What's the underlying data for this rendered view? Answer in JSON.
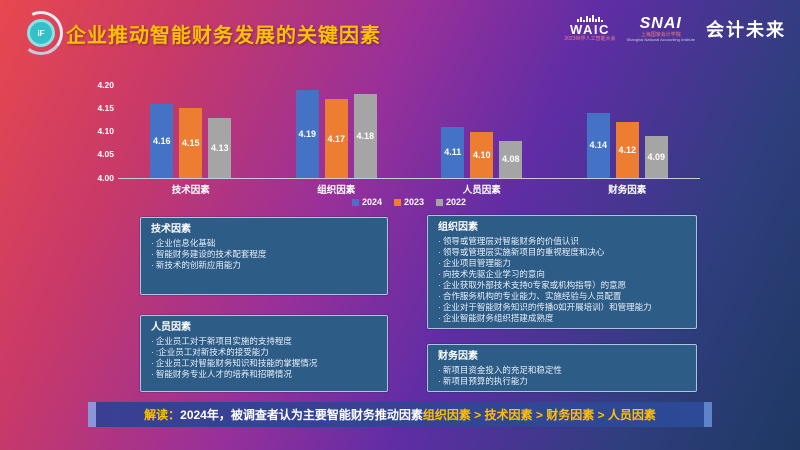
{
  "header": {
    "title": "企业推动智能财务发展的关键因素",
    "badge_text": "iF",
    "logos": {
      "waic_name": "WAIC",
      "waic_sub": "2023世界人工智能大会",
      "snai_name": "SNAI",
      "snai_sub1": "上海国家会计学院",
      "snai_sub2": "Shanghai National Accounting Institute",
      "brand": "会计未来"
    }
  },
  "chart_data": {
    "type": "bar",
    "categories": [
      "技术因素",
      "组织因素",
      "人员因素",
      "财务因素"
    ],
    "series": [
      {
        "name": "2024",
        "color": "#4472C4",
        "values": [
          4.16,
          4.19,
          4.11,
          4.14
        ]
      },
      {
        "name": "2023",
        "color": "#ED7D31",
        "values": [
          4.15,
          4.17,
          4.1,
          4.12
        ]
      },
      {
        "name": "2022",
        "color": "#A5A5A5",
        "values": [
          4.13,
          4.18,
          4.08,
          4.09
        ]
      }
    ],
    "title": "",
    "xlabel": "",
    "ylabel": "",
    "ylim": [
      4.0,
      4.2
    ],
    "yticks": [
      "4.20",
      "4.15",
      "4.10",
      "4.05",
      "4.00"
    ],
    "grid": false,
    "legend_position": "bottom",
    "value_labels": true
  },
  "boxes": [
    {
      "title": "技术因素",
      "items": [
        "企业信息化基础",
        "智能财务建设的技术配套程度",
        "新技术的创新应用能力"
      ]
    },
    {
      "title": "人员因素",
      "items": [
        "企业员工对于新项目实施的支持程度",
        ":企业员工对新技术的接受能力",
        "企业员工对智能财务知识和技能的掌握情况",
        "智能财务专业人才的培养和招聘情况"
      ]
    },
    {
      "title": "组织因素",
      "items": [
        "领导或管理层对智能财务的价值认识",
        "领导或管理层实施新项目的重视程度和决心",
        "企业项目管理能力",
        "向技术先驱企业学习的意向",
        "企业获取外部技术支持0专家或机构指导）的意愿",
        "合作服务机构的专业能力、实施经验与人员配置",
        "企业对于智能财务知识的传播0如开展培训）和管理能力",
        "企业智能财务组织搭建成熟度"
      ]
    },
    {
      "title": "财务因素",
      "items": [
        "新项目资金投入的充足和稳定性",
        "新项目预算的执行能力"
      ]
    }
  ],
  "footer": {
    "label": "解读：",
    "text": "2024年，被调查者认为主要智能财务推动因素 ",
    "highlight": "组织因素 > 技术因素 > 财务因素 > 人员因素"
  },
  "colors": {
    "title_gold": "#FFC000",
    "box_bg": "#2D5C86",
    "box_border": "#AFC3E3",
    "banner_cap_left": "#8A96D8",
    "banner_cap_right": "#5D83C9",
    "axis_line": "#C9CBDD"
  }
}
